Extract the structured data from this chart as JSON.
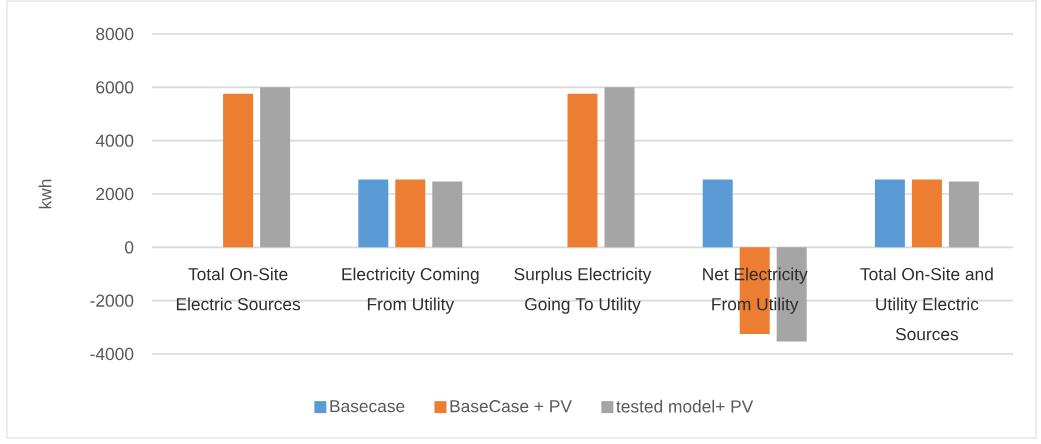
{
  "chart_data": {
    "type": "bar",
    "ylabel": "kwh",
    "categories": [
      "Total On-Site Electric Sources",
      "Electricity Coming From Utility",
      "Surplus Electricity Going To Utility",
      "Net Electricity From Utility",
      "Total On-Site and Utility Electric Sources"
    ],
    "series": [
      {
        "name": "Basecase",
        "color": "#5b9bd5",
        "values": [
          null,
          2540,
          null,
          2540,
          2540
        ]
      },
      {
        "name": "BaseCase + PV",
        "color": "#ed7d31",
        "values": [
          5760,
          2540,
          5760,
          -3250,
          2540
        ]
      },
      {
        "name": "tested model+ PV",
        "color": "#a5a5a5",
        "values": [
          6000,
          2470,
          6000,
          -3530,
          2470
        ]
      }
    ],
    "ylim": [
      -4000,
      8000
    ],
    "yticks": [
      -4000,
      -2000,
      0,
      2000,
      4000,
      6000,
      8000
    ],
    "grid": "y",
    "legend": "bottom"
  }
}
